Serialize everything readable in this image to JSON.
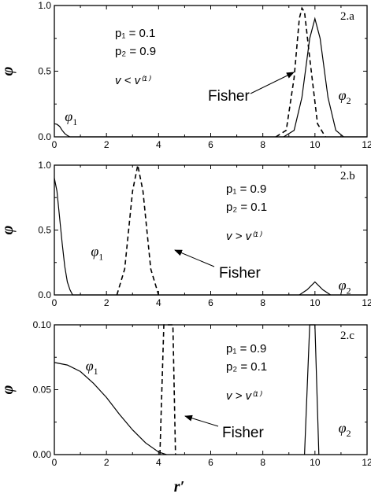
{
  "chart_data": [
    {
      "type": "line",
      "panel_label": "2.a",
      "ylabel": "φ",
      "xlim": [
        0,
        12
      ],
      "ylim": [
        0,
        1.0
      ],
      "x_ticks": [
        "0",
        "2",
        "4",
        "6",
        "8",
        "10",
        "12"
      ],
      "y_ticks": [
        "0.0",
        "0.5",
        "1.0"
      ],
      "params": [
        "p₁ = 0.1",
        "p₂ = 0.9"
      ],
      "condition": "v < v⁽¹⁾",
      "annotation": "Fisher",
      "series": [
        {
          "name": "φ1",
          "style": "solid",
          "points": [
            [
              0,
              0.1
            ],
            [
              0.1,
              0.095
            ],
            [
              0.2,
              0.08
            ],
            [
              0.3,
              0.05
            ],
            [
              0.4,
              0.025
            ],
            [
              0.5,
              0.01
            ],
            [
              0.6,
              0
            ],
            [
              12,
              0
            ]
          ]
        },
        {
          "name": "φ2",
          "style": "solid",
          "points": [
            [
              8.8,
              0
            ],
            [
              9.2,
              0.05
            ],
            [
              9.5,
              0.3
            ],
            [
              9.8,
              0.75
            ],
            [
              10,
              0.9
            ],
            [
              10.2,
              0.75
            ],
            [
              10.5,
              0.3
            ],
            [
              10.8,
              0.05
            ],
            [
              11.1,
              0
            ]
          ]
        },
        {
          "name": "Fisher",
          "style": "dashed",
          "points": [
            [
              8.5,
              0
            ],
            [
              8.9,
              0.05
            ],
            [
              9.2,
              0.45
            ],
            [
              9.4,
              0.9
            ],
            [
              9.5,
              0.98
            ],
            [
              9.6,
              0.95
            ],
            [
              9.8,
              0.6
            ],
            [
              10.1,
              0.1
            ],
            [
              10.4,
              0
            ]
          ]
        }
      ],
      "curve_labels": [
        {
          "text": "φ1",
          "x": 0.4,
          "y": 0.12
        },
        {
          "text": "φ2",
          "x": 10.9,
          "y": 0.28
        }
      ]
    },
    {
      "type": "line",
      "panel_label": "2.b",
      "ylabel": "φ",
      "xlim": [
        0,
        12
      ],
      "ylim": [
        0,
        1.0
      ],
      "x_ticks": [
        "0",
        "2",
        "4",
        "6",
        "8",
        "10",
        "12"
      ],
      "y_ticks": [
        "0.0",
        "0.5",
        "1.0"
      ],
      "params": [
        "p₁ = 0.9",
        "p₂ = 0.1"
      ],
      "condition": "v > v⁽¹⁾",
      "annotation": "Fisher",
      "series": [
        {
          "name": "φ1",
          "style": "solid",
          "points": [
            [
              0,
              0.9
            ],
            [
              0.1,
              0.8
            ],
            [
              0.2,
              0.6
            ],
            [
              0.3,
              0.4
            ],
            [
              0.4,
              0.22
            ],
            [
              0.5,
              0.1
            ],
            [
              0.6,
              0.04
            ],
            [
              0.7,
              0
            ],
            [
              12,
              0
            ]
          ]
        },
        {
          "name": "φ2",
          "style": "solid",
          "points": [
            [
              9.4,
              0
            ],
            [
              9.7,
              0.04
            ],
            [
              10,
              0.1
            ],
            [
              10.3,
              0.04
            ],
            [
              10.6,
              0
            ]
          ]
        },
        {
          "name": "Fisher",
          "style": "dashed",
          "points": [
            [
              2.4,
              0
            ],
            [
              2.7,
              0.2
            ],
            [
              3.0,
              0.8
            ],
            [
              3.2,
              1.0
            ],
            [
              3.4,
              0.8
            ],
            [
              3.7,
              0.2
            ],
            [
              4.0,
              0
            ]
          ]
        }
      ],
      "curve_labels": [
        {
          "text": "φ1",
          "x": 1.4,
          "y": 0.3
        },
        {
          "text": "φ2",
          "x": 10.9,
          "y": 0.04
        }
      ]
    },
    {
      "type": "line",
      "panel_label": "2.c",
      "ylabel": "φ",
      "xlabel": "r′",
      "xlim": [
        0,
        12
      ],
      "ylim": [
        0,
        0.1
      ],
      "x_ticks": [
        "0",
        "2",
        "4",
        "6",
        "8",
        "10",
        "12"
      ],
      "y_ticks": [
        "0.00",
        "0.05",
        "0.10"
      ],
      "params": [
        "p₁ = 0.9",
        "p₂ = 0.1"
      ],
      "condition": "v > v⁽¹⁾",
      "annotation": "Fisher",
      "series": [
        {
          "name": "φ1",
          "style": "solid",
          "points": [
            [
              0,
              0.071
            ],
            [
              0.5,
              0.069
            ],
            [
              1,
              0.064
            ],
            [
              1.5,
              0.055
            ],
            [
              2,
              0.044
            ],
            [
              2.5,
              0.031
            ],
            [
              3,
              0.019
            ],
            [
              3.5,
              0.009
            ],
            [
              4,
              0.002
            ],
            [
              4.3,
              0
            ]
          ]
        },
        {
          "name": "φ2",
          "style": "solid",
          "points": [
            [
              9.6,
              0
            ],
            [
              9.8,
              0.1
            ],
            [
              10.0,
              0.1
            ],
            [
              10.15,
              0
            ]
          ]
        },
        {
          "name": "Fisher",
          "style": "dashed",
          "points": [
            [
              4.05,
              0
            ],
            [
              4.2,
              0.1
            ],
            [
              4.55,
              0.1
            ],
            [
              4.65,
              0
            ]
          ]
        }
      ],
      "curve_labels": [
        {
          "text": "φ1",
          "x": 1.2,
          "y": 0.065
        },
        {
          "text": "φ2",
          "x": 10.9,
          "y": 0.017
        }
      ]
    }
  ]
}
